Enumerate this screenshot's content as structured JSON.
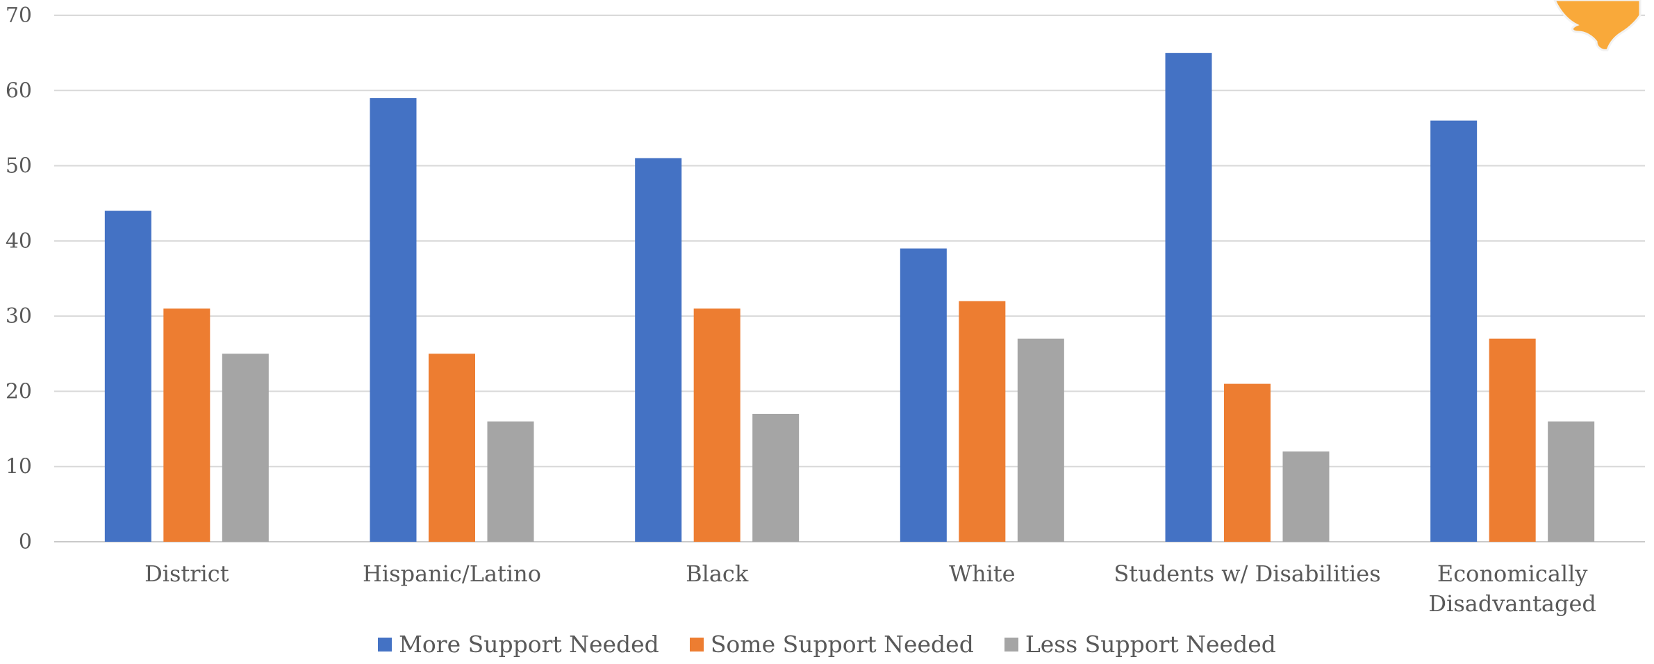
{
  "chart_data": {
    "type": "bar",
    "categories": [
      "District",
      "Hispanic/Latino",
      "Black",
      "White",
      "Students w/ Disabilities",
      "Economically Disadvantaged"
    ],
    "category_lines": [
      [
        "District"
      ],
      [
        "Hispanic/Latino"
      ],
      [
        "Black"
      ],
      [
        "White"
      ],
      [
        "Students w/ Disabilities"
      ],
      [
        "Economically",
        "Disadvantaged"
      ]
    ],
    "series": [
      {
        "name": "More Support Needed",
        "color": "#4472C4",
        "values": [
          44,
          59,
          51,
          39,
          65,
          56
        ]
      },
      {
        "name": "Some Support Needed",
        "color": "#ED7D31",
        "values": [
          31,
          25,
          31,
          32,
          21,
          27
        ]
      },
      {
        "name": "Less Support Needed",
        "color": "#A5A5A5",
        "values": [
          25,
          16,
          17,
          27,
          12,
          16
        ]
      }
    ],
    "yticks": [
      "0",
      "10",
      "20",
      "30",
      "40",
      "50",
      "60",
      "70"
    ],
    "ylim": [
      0,
      70
    ],
    "grid": true,
    "legend_position": "bottom",
    "title": "",
    "xlabel": "",
    "ylabel": ""
  },
  "legend": {
    "items": [
      {
        "label": "More Support Needed",
        "color": "#4472C4"
      },
      {
        "label": "Some Support Needed",
        "color": "#ED7D31"
      },
      {
        "label": "Less Support Needed",
        "color": "#A5A5A5"
      }
    ]
  },
  "decoration": {
    "logo_color": "#F9A93A",
    "logo_icon": "texas-state-icon"
  }
}
